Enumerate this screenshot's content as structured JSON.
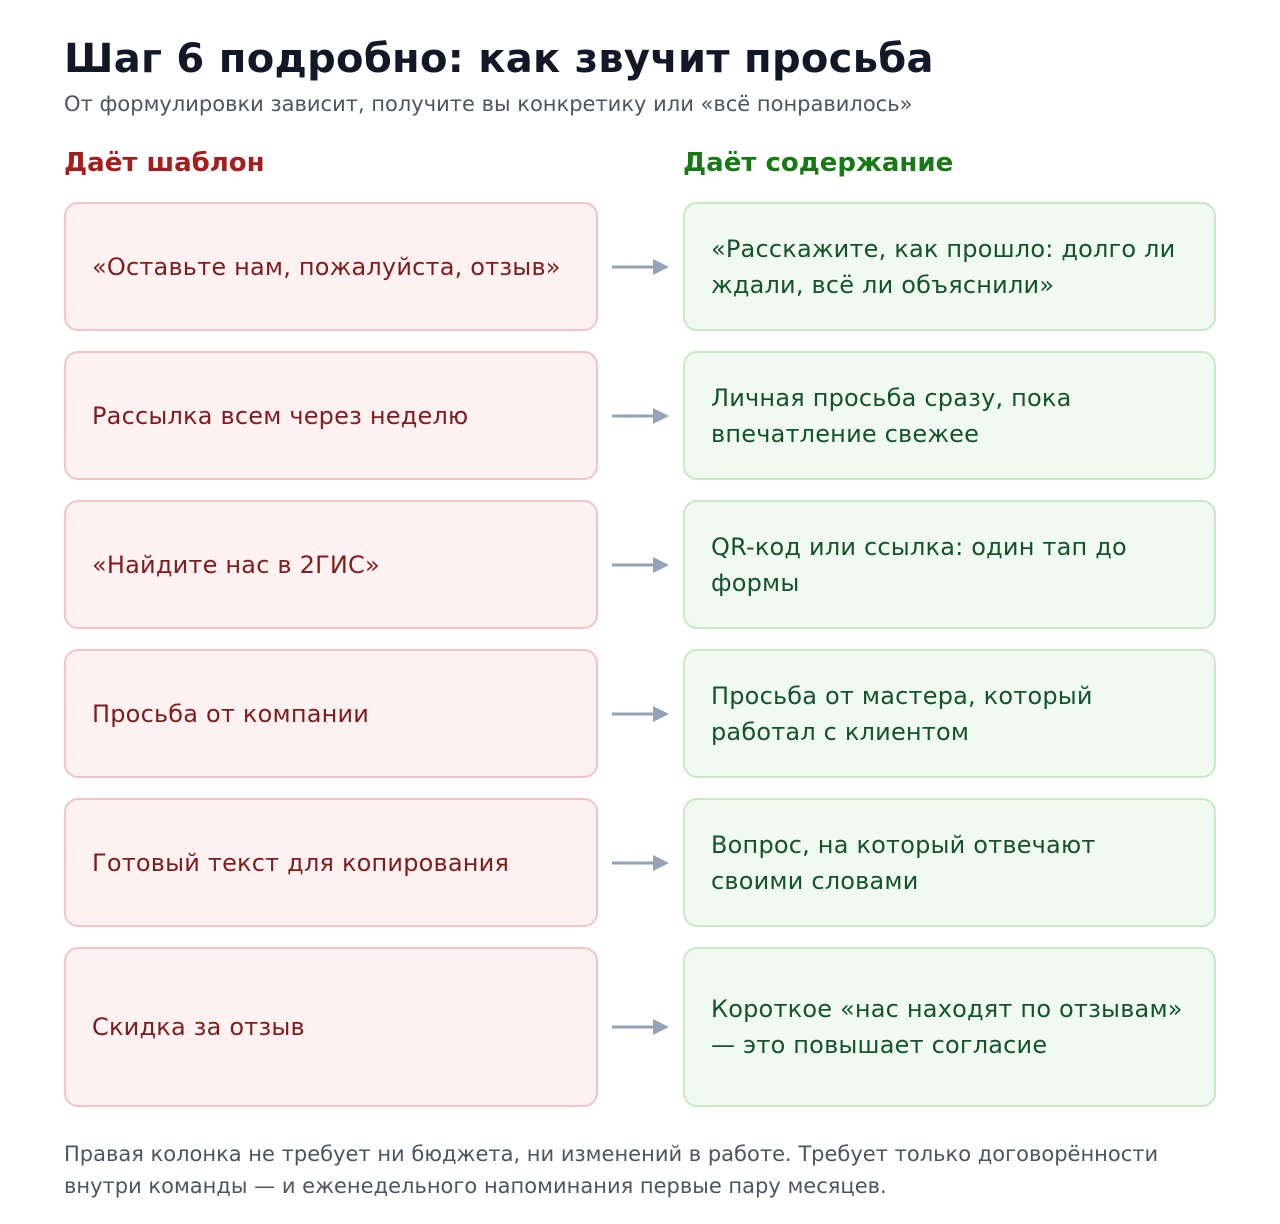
{
  "title": "Шаг 6 подробно: как звучит просьба",
  "subtitle": "От формулировки зависит, получите вы конкретику или «всё понравилось»",
  "columns": {
    "left_header": "Даёт шаблон",
    "right_header": "Даёт содержание"
  },
  "rows": [
    {
      "bad": "«Оставьте нам, пожалуйста, отзыв»",
      "good": "«Расскажите, как прошло: долго ли ждали, всё ли объяснили»"
    },
    {
      "bad": "Рассылка всем через неделю",
      "good": "Личная просьба сразу, пока впечатление свежее"
    },
    {
      "bad": "«Найдите нас в 2ГИС»",
      "good": "QR-код или ссылка: один тап до формы"
    },
    {
      "bad": "Просьба от компании",
      "good": "Просьба от мастера, который работал с клиентом"
    },
    {
      "bad": "Готовый текст для копирования",
      "good": "Вопрос, на который отвечают своими словами"
    },
    {
      "bad": "Скидка за отзыв",
      "good": "Короткое «нас находят по отзывам» — это повышает согласие"
    }
  ],
  "footer": "Правая колонка не требует ни бюджета, ни изменений в работе. Требует только договорённости внутри команды — и еженедельного напоминания первые пару месяцев.",
  "colors": {
    "bad_text": "#7f1d1d",
    "good_text": "#14532d",
    "arrow": "#94a3b8"
  }
}
